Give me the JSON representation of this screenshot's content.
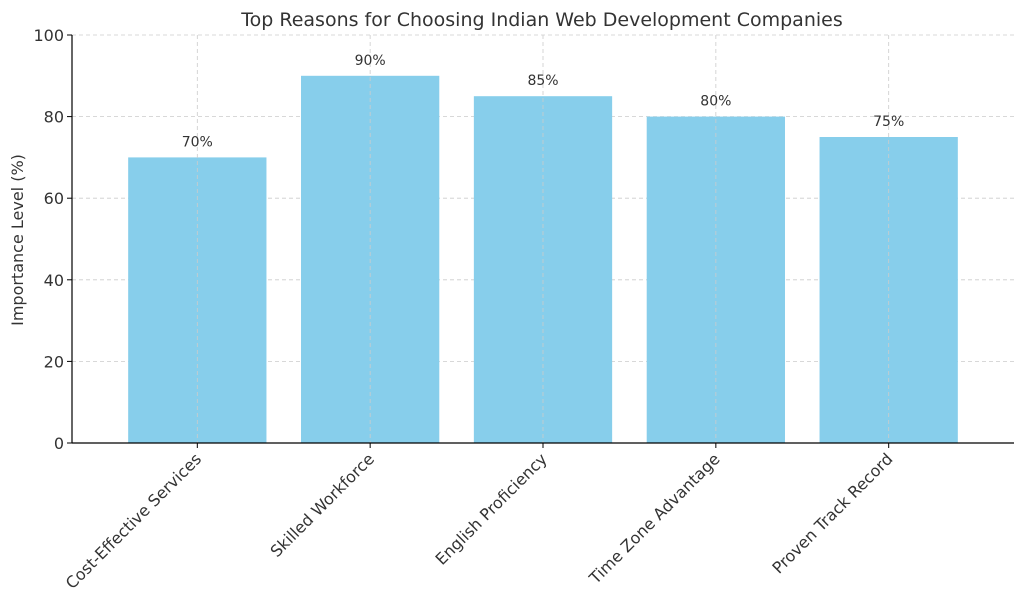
{
  "chart_data": {
    "type": "bar",
    "title": "Top Reasons for Choosing Indian Web Development Companies",
    "xlabel": "",
    "ylabel": "Importance Level (%)",
    "categories": [
      "Cost-Effective Services",
      "Skilled Workforce",
      "English Proficiency",
      "Time Zone Advantage",
      "Proven Track Record"
    ],
    "values": [
      70,
      90,
      85,
      80,
      75
    ],
    "data_labels": [
      "70%",
      "90%",
      "85%",
      "80%",
      "75%"
    ],
    "ylim": [
      0,
      100
    ],
    "yticks": [
      0,
      20,
      40,
      60,
      80,
      100
    ],
    "grid": true,
    "bar_color": "#87ceeb",
    "grid_color": "#cccccc",
    "axis_color": "#000000",
    "text_color": "#333333"
  }
}
